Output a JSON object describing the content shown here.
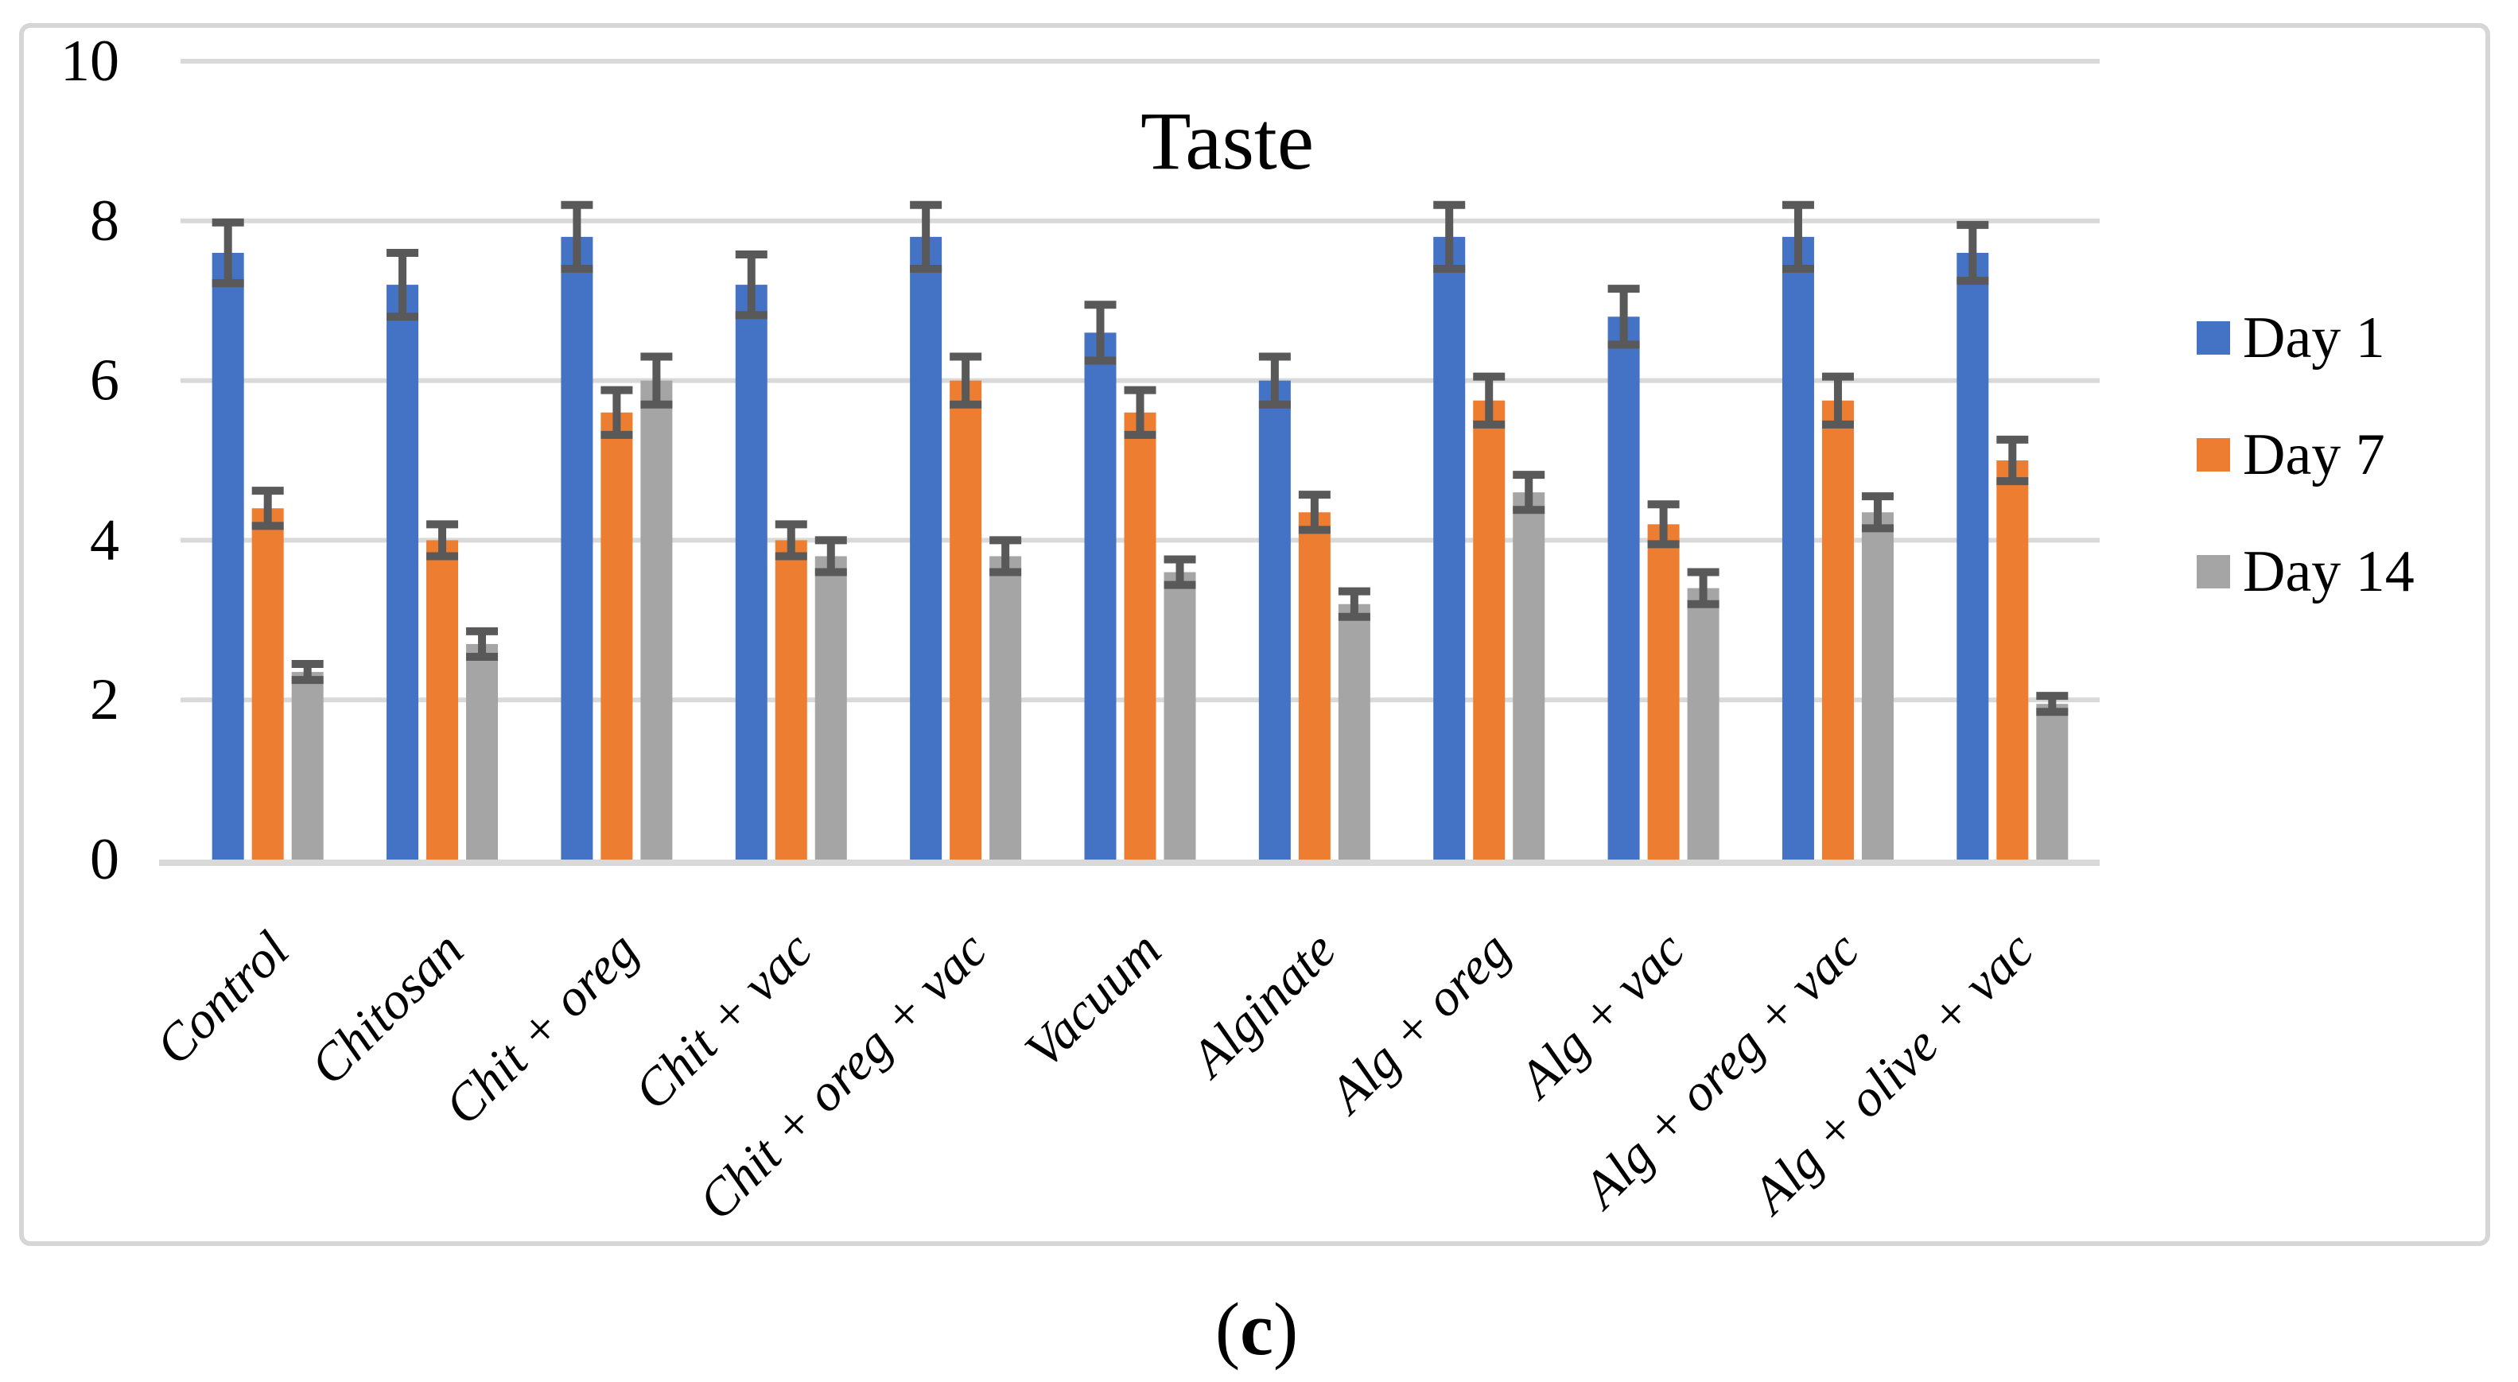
{
  "figure": {
    "caption": {
      "open": "(",
      "letter": "c",
      "close": ")"
    }
  },
  "chart_data": {
    "type": "bar",
    "title": "Taste",
    "xlabel": "",
    "ylabel": "",
    "ylim": [
      0,
      10
    ],
    "ytick_step": 2,
    "ytick_labels": [
      "0",
      "2",
      "4",
      "6",
      "8",
      "10"
    ],
    "grid": true,
    "legend_position": "right",
    "categories": [
      "Control",
      "Chitosan",
      "Chit + oreg",
      "Chit + vac",
      "Chit + oreg + vac",
      "Vacuum",
      "Alginate",
      "Alg + oreg",
      "Alg + vac",
      "Alg + oreg + vac",
      "Alg + olive + vac"
    ],
    "series": [
      {
        "name": "Day 1",
        "color": "#4472C4",
        "values": [
          7.6,
          7.2,
          7.8,
          7.2,
          7.8,
          6.6,
          6.0,
          7.8,
          6.8,
          7.8,
          7.6
        ],
        "errors": [
          0.38,
          0.4,
          0.4,
          0.38,
          0.4,
          0.35,
          0.3,
          0.4,
          0.35,
          0.4,
          0.35
        ]
      },
      {
        "name": "Day 7",
        "color": "#ED7D31",
        "values": [
          4.4,
          4.0,
          5.6,
          4.0,
          6.0,
          5.6,
          4.35,
          5.75,
          4.2,
          5.75,
          5.0
        ],
        "errors": [
          0.22,
          0.2,
          0.28,
          0.2,
          0.3,
          0.28,
          0.22,
          0.3,
          0.25,
          0.3,
          0.26
        ]
      },
      {
        "name": "Day 14",
        "color": "#A5A5A5",
        "values": [
          2.35,
          2.7,
          6.0,
          3.8,
          3.8,
          3.6,
          3.2,
          4.6,
          3.4,
          4.35,
          1.95
        ],
        "errors": [
          0.1,
          0.16,
          0.3,
          0.2,
          0.2,
          0.16,
          0.16,
          0.22,
          0.2,
          0.2,
          0.1
        ]
      }
    ],
    "error_bar_color": "#595959",
    "gridline_color": "#D9D9D9",
    "axis_line_color": "#D9D9D9",
    "text_color": "#000000"
  }
}
